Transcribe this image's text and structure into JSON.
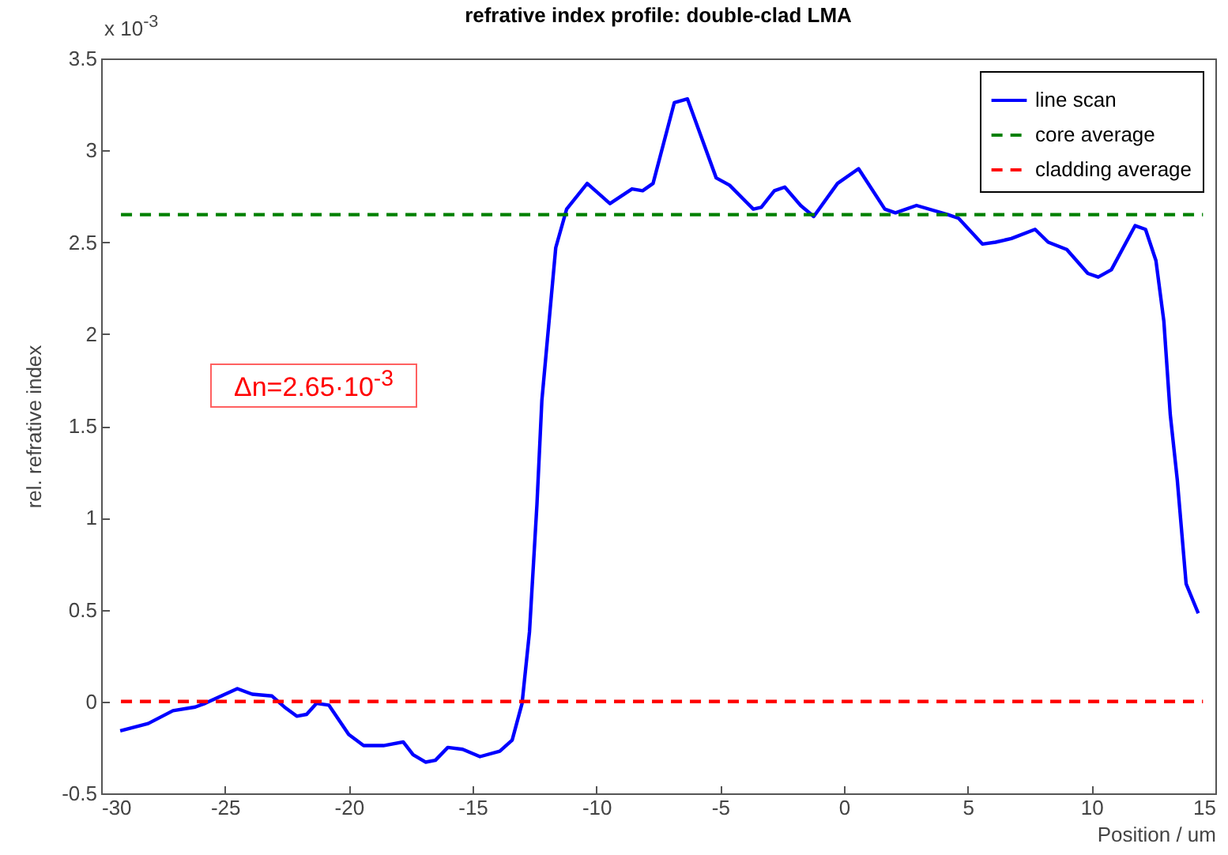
{
  "chart_data": {
    "type": "line",
    "title": "refrative index profile: double-clad LMA",
    "xlabel": "Position / um",
    "ylabel": "rel. refrative index",
    "annotations": [
      "x 10$^{-3}$",
      "Δn=2.65·10$^{-3}$"
    ],
    "xlim": [
      -30,
      15
    ],
    "xticks": [
      -30,
      -25,
      -20,
      -15,
      -10,
      -5,
      0,
      5,
      10,
      15
    ],
    "ylim": [
      -0.5,
      3.5
    ],
    "yticks": [
      -0.5,
      0,
      0.5,
      1,
      1.5,
      2,
      2.5,
      3,
      3.5
    ],
    "legend": "top right",
    "series": [
      {
        "name": "line scan",
        "color": "#0000ff",
        "line_style": "solid",
        "x": [
          -29.23,
          -28.1,
          -27.1,
          -26.2,
          -25.8,
          -24.5,
          -23.9,
          -23.1,
          -22.6,
          -22.1,
          -21.7,
          -21.3,
          -20.8,
          -20.0,
          -19.4,
          -18.6,
          -17.8,
          -17.4,
          -16.9,
          -16.5,
          -16.0,
          -15.4,
          -14.7,
          -13.9,
          -13.4,
          -13.0,
          -12.7,
          -12.4,
          -12.2,
          -11.64,
          -11.2,
          -10.37,
          -9.45,
          -8.56,
          -8.13,
          -7.71,
          -6.85,
          -6.32,
          -5.16,
          -4.62,
          -3.66,
          -3.34,
          -2.81,
          -2.39,
          -1.75,
          -1.22,
          -0.26,
          0.59,
          1.65,
          2.08,
          2.93,
          4.2,
          4.63,
          5.59,
          6.12,
          6.76,
          7.72,
          8.25,
          9.0,
          9.85,
          10.27,
          10.8,
          11.76,
          12.18,
          12.6,
          12.92,
          13.18,
          13.46,
          13.82,
          14.31
        ],
        "values": [
          -0.16,
          -0.12,
          -0.05,
          -0.03,
          -0.01,
          0.07,
          0.04,
          0.03,
          -0.03,
          -0.08,
          -0.07,
          -0.01,
          -0.02,
          -0.18,
          -0.24,
          -0.24,
          -0.22,
          -0.29,
          -0.33,
          -0.32,
          -0.25,
          -0.26,
          -0.3,
          -0.27,
          -0.21,
          -0.01,
          0.38,
          1.07,
          1.64,
          2.47,
          2.68,
          2.82,
          2.71,
          2.79,
          2.78,
          2.82,
          3.26,
          3.28,
          2.85,
          2.81,
          2.68,
          2.69,
          2.78,
          2.8,
          2.7,
          2.64,
          2.82,
          2.9,
          2.68,
          2.66,
          2.7,
          2.65,
          2.63,
          2.49,
          2.5,
          2.52,
          2.57,
          2.5,
          2.46,
          2.33,
          2.31,
          2.35,
          2.59,
          2.57,
          2.4,
          2.07,
          1.56,
          1.21,
          0.64,
          0.48
        ]
      },
      {
        "name": "core average",
        "color": "#008000",
        "line_style": "dashed",
        "x": [
          -29.2,
          14.5
        ],
        "values": [
          2.65,
          2.65
        ]
      },
      {
        "name": "cladding average",
        "color": "#ff0000",
        "line_style": "dashed",
        "x": [
          -29.2,
          14.5
        ],
        "values": [
          0,
          0
        ]
      }
    ]
  }
}
